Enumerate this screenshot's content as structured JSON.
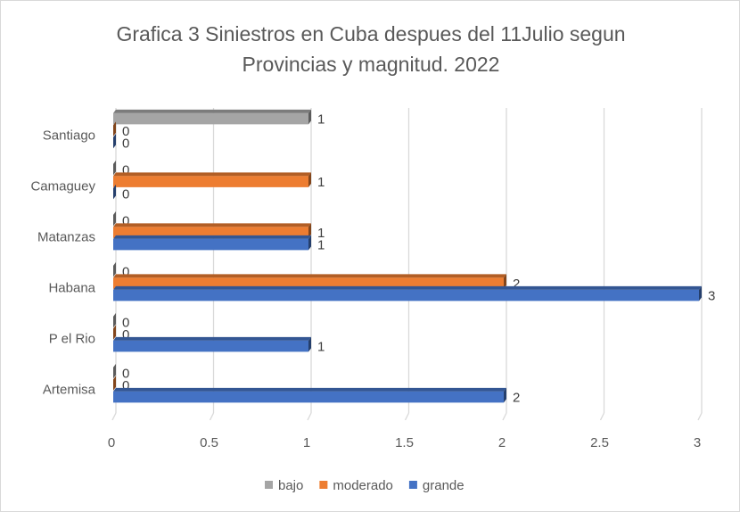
{
  "chart_data": {
    "type": "bar",
    "orientation": "horizontal",
    "title_lines": [
      "Grafica 3 Siniestros en Cuba despues  del 11Julio segun",
      "Provincias y magnitud. 2022"
    ],
    "categories": [
      "Artemisa",
      "P el Rio",
      "Habana",
      "Matanzas",
      "Camaguey",
      "Santiago"
    ],
    "series": [
      {
        "name": "bajo",
        "color": "#a5a5a5",
        "values": [
          0,
          0,
          0,
          0,
          0,
          1
        ]
      },
      {
        "name": "moderado",
        "color": "#ed7d31",
        "values": [
          0,
          0,
          2,
          1,
          1,
          0
        ]
      },
      {
        "name": "grande",
        "color": "#4472c4",
        "values": [
          2,
          1,
          3,
          1,
          0,
          0
        ]
      }
    ],
    "xlim": [
      0,
      3
    ],
    "xticks": [
      "0",
      "0.5",
      "1",
      "1.5",
      "2",
      "2.5",
      "3"
    ],
    "xlabel": "",
    "ylabel": "",
    "grid": true,
    "legend": "bottom"
  }
}
